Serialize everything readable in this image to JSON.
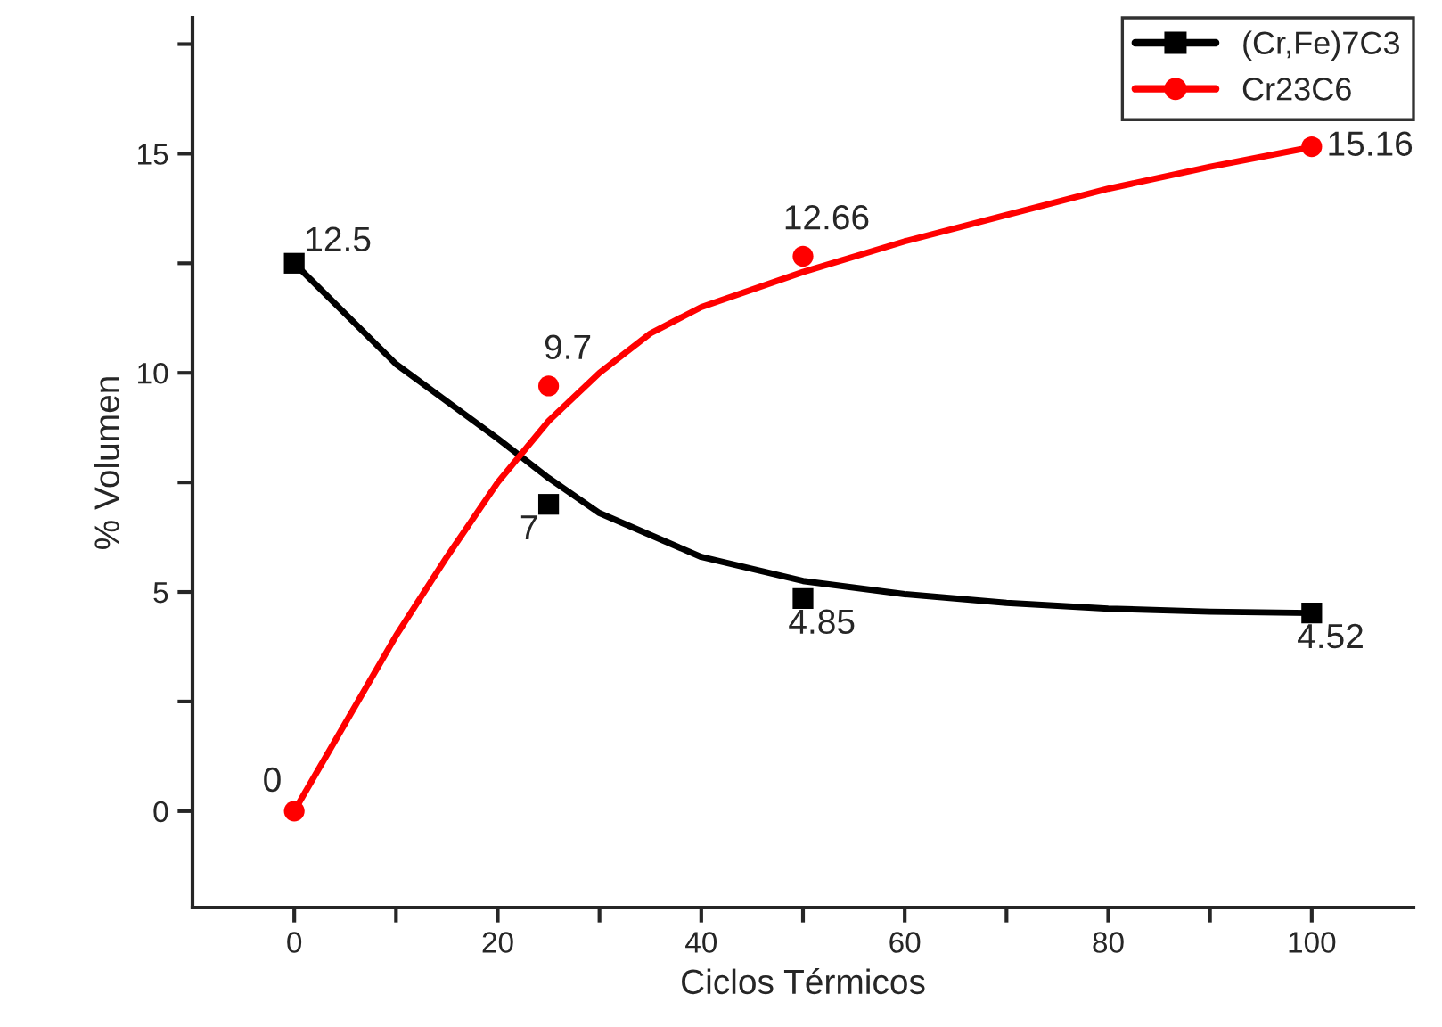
{
  "chart_data": {
    "type": "scatter",
    "xlabel": "Ciclos Térmicos",
    "ylabel": "% Volumen",
    "xlim": [
      -10,
      110
    ],
    "ylim": [
      -2.2,
      18.1
    ],
    "xticks": [
      0,
      {
        "value": 10,
        "label": null
      },
      20,
      {
        "value": 30,
        "label": null
      },
      40,
      {
        "value": 50,
        "label": null
      },
      60,
      {
        "value": 70,
        "label": null
      },
      80,
      {
        "value": 90,
        "label": null
      },
      100
    ],
    "yticks": [
      0,
      {
        "value": 2.5,
        "label": null
      },
      5,
      {
        "value": 7.5,
        "label": null
      },
      10,
      {
        "value": 12.5,
        "label": null
      },
      15,
      {
        "value": 17.5,
        "label": null
      }
    ],
    "grid": false,
    "legend": "top right",
    "series": [
      {
        "type": "line",
        "color": "#000000",
        "x": [
          0,
          10,
          20,
          25,
          30,
          40,
          50,
          60,
          70,
          80,
          90,
          100
        ],
        "values": [
          12.5,
          10.2,
          8.5,
          7.6,
          6.8,
          5.8,
          5.25,
          4.95,
          4.75,
          4.62,
          4.55,
          4.52
        ]
      },
      {
        "type": "line",
        "color": "#ff0000",
        "x": [
          0,
          5,
          10,
          15,
          20,
          25,
          30,
          35,
          40,
          50,
          60,
          70,
          80,
          90,
          100
        ],
        "values": [
          0,
          2.0,
          4.0,
          5.8,
          7.5,
          8.9,
          10.0,
          10.9,
          11.5,
          12.3,
          13.0,
          13.6,
          14.2,
          14.7,
          15.15
        ]
      },
      {
        "name": "(Cr,Fe)7C3",
        "color": "#000000",
        "marker": "square",
        "x": [
          0,
          25,
          50,
          100
        ],
        "values": [
          12.5,
          7,
          4.85,
          4.52
        ],
        "value_labels": [
          "12.5",
          "7",
          "4.85",
          "4.52"
        ]
      },
      {
        "name": "Cr23C6",
        "color": "#ff0000",
        "marker": "circle",
        "x": [
          0,
          25,
          50,
          100
        ],
        "values": [
          0,
          9.7,
          12.66,
          15.16
        ],
        "value_labels": [
          "0",
          "9.7",
          "12.66",
          "15.16"
        ]
      }
    ]
  }
}
